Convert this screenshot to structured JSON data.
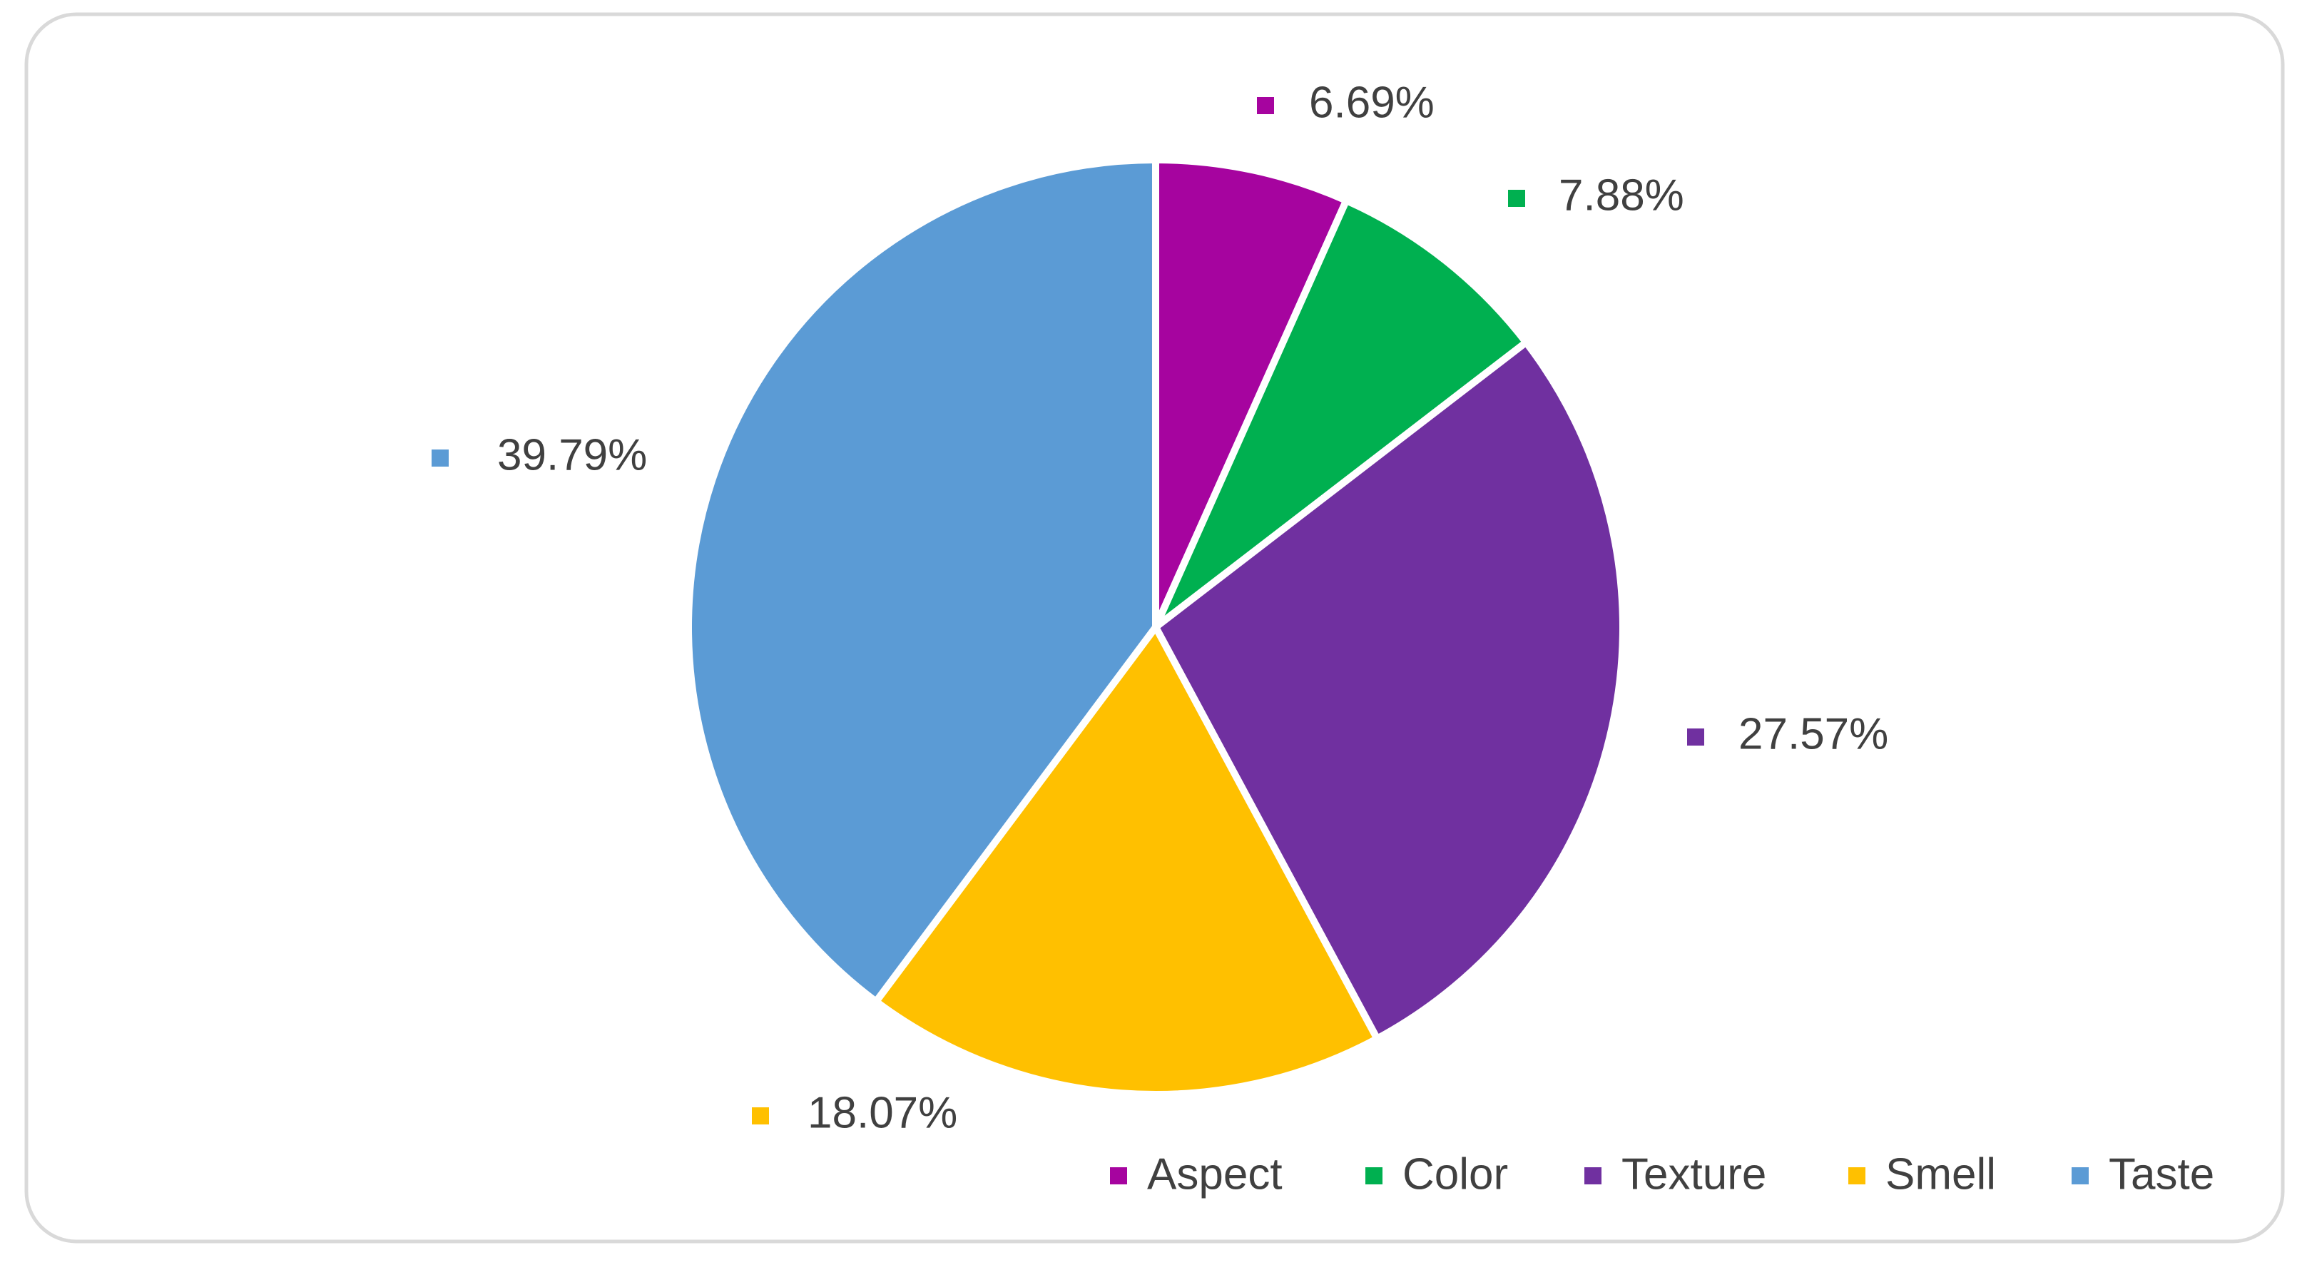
{
  "chart_data": {
    "type": "pie",
    "categories": [
      "Aspect",
      "Color",
      "Texture",
      "Smell",
      "Taste"
    ],
    "values": [
      6.69,
      7.88,
      27.57,
      18.07,
      39.79
    ],
    "value_labels": [
      "6.69%",
      "7.88%",
      "27.57%",
      "18.07%",
      "39.79%"
    ],
    "colors": [
      "#a6049f",
      "#00b050",
      "#7030a0",
      "#ffc000",
      "#5b9bd5"
    ],
    "legend": "bottom-right"
  }
}
